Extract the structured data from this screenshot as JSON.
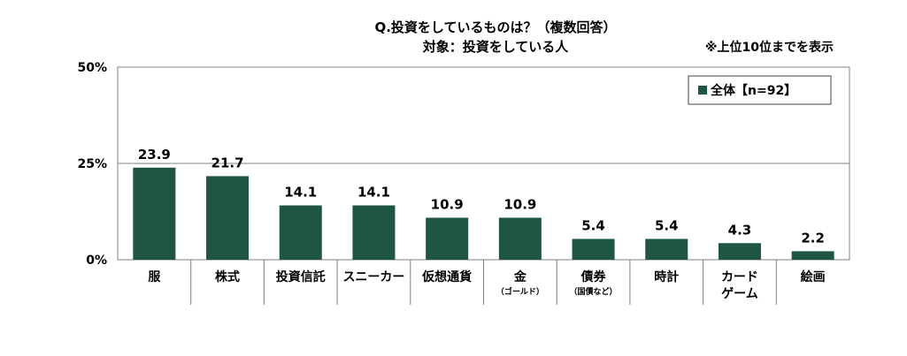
{
  "chart_data": {
    "type": "bar",
    "title": "Q.投資をしているものは？（複数回答）",
    "subtitle": "対象：投資をしている人",
    "note": "※上位10位までを表示",
    "categories": [
      "服",
      "株式",
      "投資信託",
      "スニーカー",
      "仮想通貨",
      "金",
      "債券",
      "時計",
      "カードゲーム",
      "絵画"
    ],
    "category_lines": [
      [
        "服"
      ],
      [
        "株式"
      ],
      [
        "投資信託"
      ],
      [
        "スニーカー"
      ],
      [
        "仮想通貨"
      ],
      [
        "金"
      ],
      [
        "債券"
      ],
      [
        "時計"
      ],
      [
        "カード",
        "ゲーム"
      ],
      [
        "絵画"
      ]
    ],
    "category_sublabels": [
      "",
      "",
      "",
      "",
      "",
      "（ゴールド）",
      "（国債など）",
      "",
      "",
      ""
    ],
    "series": [
      {
        "name": "全体【n=92】",
        "values": [
          23.9,
          21.7,
          14.1,
          14.1,
          10.9,
          10.9,
          5.4,
          5.4,
          4.3,
          2.2
        ]
      }
    ],
    "value_labels": [
      "23.9",
      "21.7",
      "14.1",
      "14.1",
      "10.9",
      "10.9",
      "5.4",
      "5.4",
      "4.3",
      "2.2"
    ],
    "ylim": [
      0,
      50
    ],
    "yticks": [
      0,
      25,
      50
    ],
    "ytick_labels": [
      "0%",
      "25%",
      "50%"
    ],
    "grid": true,
    "legend_position": "top-right",
    "colors": {
      "bar": "#1e5642",
      "axis": "#808080",
      "grid": "#808080"
    }
  }
}
